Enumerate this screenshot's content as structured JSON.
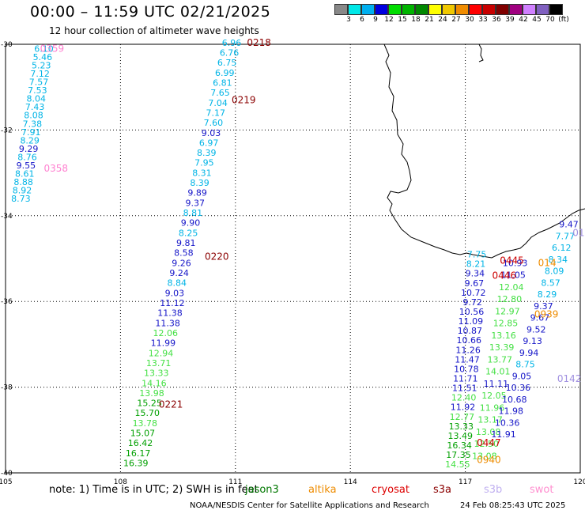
{
  "header": {
    "title": "00:00 – 11:59 UTC 02/21/2025",
    "subtitle": "12 hour collection of altimeter wave heights"
  },
  "legend": {
    "colors": [
      "#888888",
      "#00e8e8",
      "#00b0f0",
      "#0000e0",
      "#00dd00",
      "#00b400",
      "#008800",
      "#ffff00",
      "#f0c800",
      "#f08c00",
      "#ff0000",
      "#c80000",
      "#800000",
      "#a00080",
      "#d080ff",
      "#8060c0",
      "#000000"
    ],
    "labels": [
      "3",
      "6",
      "9",
      "12",
      "15",
      "18",
      "21",
      "24",
      "27",
      "30",
      "33",
      "36",
      "39",
      "42",
      "45",
      "70",
      "(ft)"
    ]
  },
  "map": {
    "lon_ticks": [
      "105",
      "108",
      "111",
      "114",
      "117",
      "120"
    ],
    "lat_ticks": [
      "-30",
      "-32",
      "-34",
      "-36",
      "-38",
      "-40"
    ],
    "lon_range": [
      105,
      120
    ],
    "lat_range": [
      -40,
      -30
    ]
  },
  "passes": [
    {
      "id": "0359",
      "color": "#ff80d0",
      "lon": 105.9,
      "lat": -30.1
    },
    {
      "id": "0358",
      "color": "#ff80d0",
      "lon": 106.0,
      "lat": -32.9
    },
    {
      "id": "0218",
      "color": "#8b0000",
      "lon": 111.3,
      "lat": -29.96
    },
    {
      "id": "0219",
      "color": "#8b0000",
      "lon": 110.9,
      "lat": -31.3
    },
    {
      "id": "0220",
      "color": "#8b0000",
      "lon": 110.2,
      "lat": -34.95
    },
    {
      "id": "0221",
      "color": "#8b0000",
      "lon": 109.0,
      "lat": -38.4
    },
    {
      "id": "0445",
      "color": "#cc0000",
      "lon": 117.9,
      "lat": -35.05
    },
    {
      "id": "0446",
      "color": "#cc0000",
      "lon": 117.7,
      "lat": -35.4
    },
    {
      "id": "0447",
      "color": "#cc0000",
      "lon": 117.3,
      "lat": -39.3
    },
    {
      "id": "0939",
      "color": "#ee8c00",
      "lon": 118.8,
      "lat": -36.3
    },
    {
      "id": "0940",
      "color": "#ee8c00",
      "lon": 117.3,
      "lat": -39.7
    },
    {
      "id": "0142",
      "color": "#a090e0",
      "lon": 119.4,
      "lat": -37.8
    },
    {
      "id": "014",
      "color": "#ee8c00",
      "lon": 118.9,
      "lat": -35.1
    },
    {
      "id": "01",
      "color": "#a090e0",
      "lon": 119.8,
      "lat": -34.4
    }
  ],
  "tracks": [
    {
      "vals": [
        "6.10",
        "5.46",
        "5.23",
        "7.12",
        "7.57",
        "7.53",
        "8.04",
        "7.43",
        "8.08",
        "7.38",
        "7.91",
        "8.29",
        "9.29",
        "8.76",
        "9.55",
        "8.61",
        "8.88",
        "8.92",
        "8.73"
      ],
      "colors": [
        "c",
        "c",
        "c",
        "c",
        "c",
        "c",
        "c",
        "c",
        "c",
        "c",
        "c",
        "c",
        "b",
        "c",
        "b",
        "c",
        "c",
        "c",
        "c"
      ],
      "start": [
        106.0,
        -30.1
      ],
      "end": [
        105.4,
        -33.6
      ]
    },
    {
      "vals": [
        "6.96",
        "6.76",
        "6.75",
        "6.99",
        "6.81",
        "7.65",
        "7.04",
        "7.17",
        "7.60",
        "9.03",
        "6.97",
        "8.39",
        "7.95",
        "8.31",
        "8.39",
        "9.89",
        "9.37",
        "8.81",
        "9.90",
        "8.25",
        "9.81",
        "8.58",
        "9.26",
        "9.24",
        "8.84",
        "9.03",
        "11.12",
        "11.38",
        "11.38",
        "12.06",
        "11.99",
        "12.94",
        "13.71",
        "13.33",
        "14.16",
        "13.98",
        "15.25",
        "15.70",
        "13.78",
        "15.07",
        "16.42",
        "16.17",
        "16.39"
      ],
      "colors": [
        "c",
        "c",
        "c",
        "c",
        "c",
        "c",
        "c",
        "c",
        "c",
        "b",
        "c",
        "c",
        "c",
        "c",
        "c",
        "b",
        "b",
        "c",
        "b",
        "c",
        "b",
        "b",
        "b",
        "b",
        "c",
        "b",
        "b",
        "b",
        "b",
        "lg",
        "b",
        "lg",
        "lg",
        "lg",
        "lg",
        "lg",
        "dg",
        "dg",
        "lg",
        "dg",
        "dg",
        "dg",
        "dg"
      ],
      "start": [
        110.9,
        -29.96
      ],
      "end": [
        108.4,
        -39.77
      ]
    },
    {
      "vals": [
        "7.75",
        "8.21",
        "9.34",
        "9.67",
        "10.72",
        "9.72",
        "10.56",
        "11.09",
        "10.87",
        "10.66",
        "11.26",
        "11.47",
        "10.78",
        "11.71",
        "11.51",
        "12.40",
        "11.92",
        "12.77",
        "13.33",
        "13.49",
        "16.34",
        "17.35",
        "14.55"
      ],
      "colors": [
        "c",
        "c",
        "b",
        "b",
        "b",
        "b",
        "b",
        "b",
        "b",
        "b",
        "b",
        "b",
        "b",
        "b",
        "b",
        "lg",
        "b",
        "lg",
        "dg",
        "dg",
        "dg",
        "dg",
        "lg"
      ],
      "start": [
        117.3,
        -34.9
      ],
      "end": [
        116.8,
        -39.8
      ]
    },
    {
      "vals": [
        "10.93",
        "11.05",
        "12.04",
        "12.80",
        "12.97",
        "12.85",
        "13.16",
        "13.39",
        "13.77",
        "14.01",
        "11.11",
        "12.05",
        "11.96",
        "13.17",
        "13.08",
        "12.50",
        "13.08"
      ],
      "colors": [
        "b",
        "b",
        "lg",
        "lg",
        "lg",
        "lg",
        "lg",
        "lg",
        "lg",
        "lg",
        "b",
        "lg",
        "lg",
        "lg",
        "lg",
        "lg",
        "lg"
      ],
      "start": [
        118.3,
        -35.1
      ],
      "end": [
        117.5,
        -39.6
      ]
    },
    {
      "vals": [
        "9.47",
        "7.77",
        "6.12",
        "8.34",
        "8.09",
        "8.57",
        "8.29",
        "9.37",
        "9.67",
        "9.52",
        "9.13",
        "9.94",
        "8.75",
        "9.05",
        "10.36",
        "10.68",
        "11.98",
        "10.36",
        "11.91"
      ],
      "colors": [
        "b",
        "c",
        "c",
        "c",
        "c",
        "c",
        "c",
        "b",
        "b",
        "b",
        "b",
        "b",
        "c",
        "b",
        "b",
        "b",
        "b",
        "b",
        "b"
      ],
      "start": [
        119.7,
        -34.2
      ],
      "end": [
        118.0,
        -39.1
      ]
    }
  ],
  "footer": {
    "note": "note:  1) Time is in UTC;  2) SWH is in feet",
    "missions": [
      {
        "name": "jason3",
        "color": "#007700"
      },
      {
        "name": "altika",
        "color": "#ee8c00"
      },
      {
        "name": "cryosat",
        "color": "#dd0000"
      },
      {
        "name": "s3a",
        "color": "#8b0000"
      },
      {
        "name": "s3b",
        "color": "#c0b0f0"
      },
      {
        "name": "swot",
        "color": "#ff90d0"
      }
    ],
    "credit": "NOAA/NESDIS Center for Satellite Applications and Research",
    "timestamp": "24 Feb 08:25:43 UTC 2025"
  }
}
